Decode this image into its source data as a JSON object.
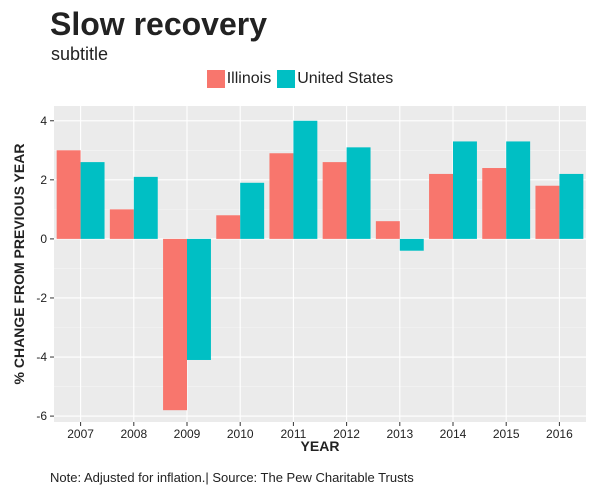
{
  "chart_data": {
    "type": "bar",
    "title": "Slow recovery",
    "subtitle": "subtitle",
    "xlabel": "YEAR",
    "ylabel": "% CHANGE FROM PREVIOUS YEAR",
    "categories": [
      "2007",
      "2008",
      "2009",
      "2010",
      "2011",
      "2012",
      "2013",
      "2014",
      "2015",
      "2016"
    ],
    "series": [
      {
        "name": "Illinois",
        "color": "#F8766D",
        "values": [
          3.0,
          1.0,
          -5.8,
          0.8,
          2.9,
          2.6,
          0.6,
          2.2,
          2.4,
          1.8
        ]
      },
      {
        "name": "United States",
        "color": "#00BFC4",
        "values": [
          2.6,
          2.1,
          -4.1,
          1.9,
          4.0,
          3.1,
          -0.4,
          3.3,
          3.3,
          2.2
        ]
      }
    ],
    "ylim": [
      -6.2,
      4.5
    ],
    "yticks": [
      -6,
      -4,
      -2,
      0,
      2,
      4
    ],
    "ytick_labels": [
      "-6",
      "-4",
      "-2",
      "0",
      "2",
      "4"
    ],
    "grid": true,
    "legend_position": "top"
  },
  "note": "Note: Adjusted for inflation.| Source: The Pew Charitable Trusts"
}
